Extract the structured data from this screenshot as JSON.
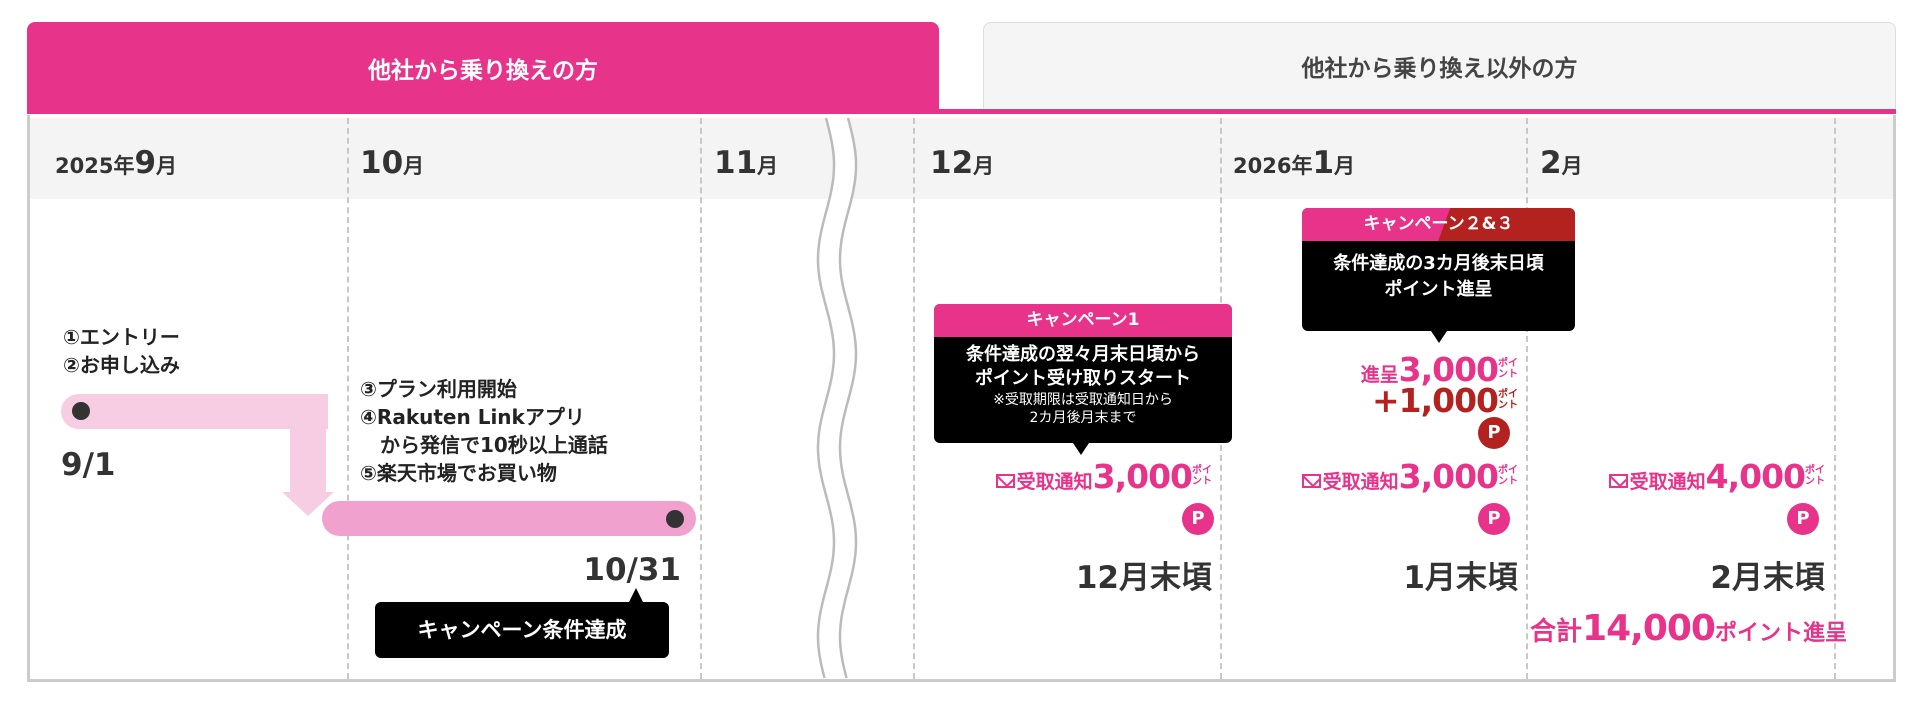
{
  "tabs": [
    {
      "label": "他社から乗り換えの方",
      "active": true
    },
    {
      "label": "他社から乗り換え以外の方",
      "active": false
    }
  ],
  "colors": {
    "accent": "#e8338b",
    "accent_dark": "#b3221e",
    "bar_light": "#f7cde4",
    "bar_mid": "#f1a1cd"
  },
  "months": [
    {
      "prefix": "2025年",
      "num": "9",
      "suffix": "月"
    },
    {
      "prefix": "",
      "num": "10",
      "suffix": "月"
    },
    {
      "prefix": "",
      "num": "11",
      "suffix": "月"
    },
    {
      "prefix": "",
      "num": "12",
      "suffix": "月"
    },
    {
      "prefix": "2026年",
      "num": "1",
      "suffix": "月"
    },
    {
      "prefix": "",
      "num": "2",
      "suffix": "月"
    }
  ],
  "steps1": [
    "①エントリー",
    "②お申し込み"
  ],
  "steps2": [
    "③プラン利用開始",
    "④Rakuten Linkアプリ",
    "　から発信で10秒以上通話",
    "⑤楽天市場でお買い物"
  ],
  "start_date": "9/1",
  "end_date": "10/31",
  "achieved_label": "キャンペーン条件達成",
  "campaign1": {
    "title": "キャンペーン1",
    "line1": "条件達成の翌々月末日頃から",
    "line2": "ポイント受け取りスタート",
    "note1": "※受取期限は受取通知日から",
    "note2": "2カ月後月末まで"
  },
  "campaign23": {
    "title": "キャンペーン２&３",
    "line1": "条件達成の3カ月後末日頃",
    "line2": "ポイント進呈"
  },
  "grant": {
    "prefix": "進呈",
    "amount": "3,000",
    "bonus": "+1,000"
  },
  "point_unit_top": "ポイ",
  "point_unit_bottom": "ント",
  "notice_label": "受取通知",
  "payouts": [
    {
      "amount": "3,000",
      "when": "12月末頃"
    },
    {
      "amount": "3,000",
      "when": "1月末頃"
    },
    {
      "amount": "4,000",
      "when": "2月末頃"
    }
  ],
  "p_icon": "P",
  "total": {
    "prefix": "合計",
    "amount": "14,000",
    "suffix": "ポイント進呈"
  }
}
